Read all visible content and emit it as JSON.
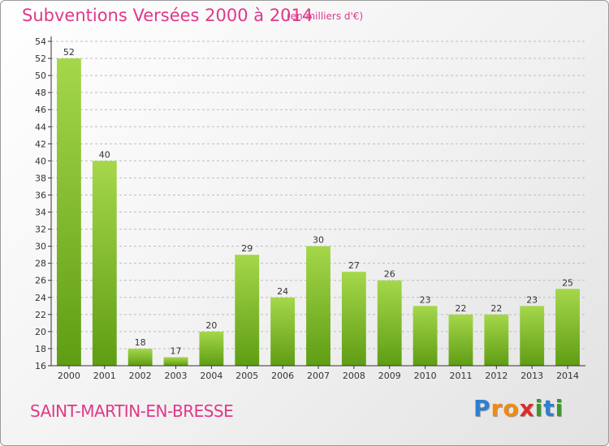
{
  "title": "Subventions Versées 2000 à 2014",
  "unit_note": "(en milliers d'€)",
  "commune": "SAINT-MARTIN-EN-BRESSE",
  "logo": {
    "text": "Proxiti",
    "letters": [
      {
        "ch": "P",
        "color": "#2f7fd1"
      },
      {
        "ch": "r",
        "color": "#f08a12"
      },
      {
        "ch": "o",
        "color": "#f08a12"
      },
      {
        "ch": "x",
        "color": "#e02b2b"
      },
      {
        "ch": "i",
        "color": "#3a9a2a"
      },
      {
        "ch": "t",
        "color": "#2f7fd1"
      },
      {
        "ch": "i",
        "color": "#3a9a2a"
      }
    ]
  },
  "colors": {
    "title": "#e0388a",
    "bar_light": "#a5d74a",
    "bar_dark": "#5f9d14",
    "grid": "#bdbdbd",
    "axis": "#333333"
  },
  "chart_data": {
    "type": "bar",
    "categories": [
      "2000",
      "2001",
      "2002",
      "2003",
      "2004",
      "2005",
      "2006",
      "2007",
      "2008",
      "2009",
      "2010",
      "2011",
      "2012",
      "2013",
      "2014"
    ],
    "values": [
      52,
      40,
      18,
      17,
      20,
      29,
      24,
      30,
      27,
      26,
      23,
      22,
      22,
      23,
      25
    ],
    "ylim": [
      16,
      54
    ],
    "ytick_step": 2,
    "grid": "horizontal dashed",
    "title": "Subventions Versées 2000 à 2014",
    "xlabel": "",
    "ylabel": ""
  }
}
